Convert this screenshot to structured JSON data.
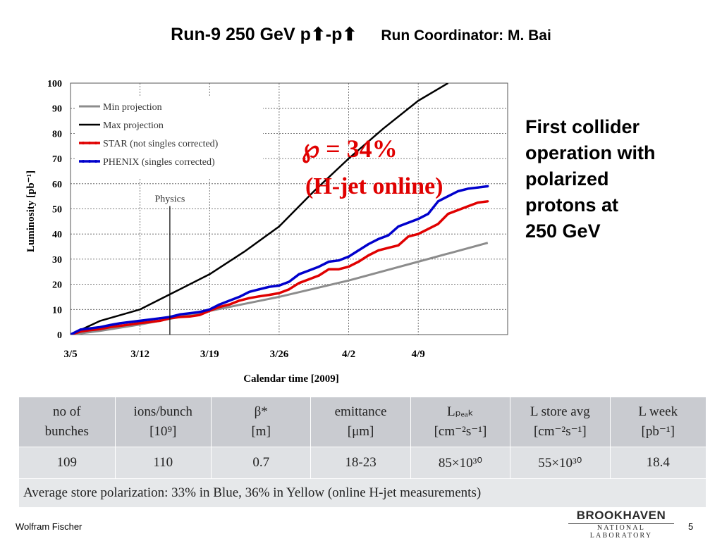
{
  "slide": {
    "title": "Run-9 250 GeV p⬆-p⬆",
    "coordinator": "Run Coordinator: M. Bai",
    "side_lines": [
      "First collider",
      "operation with",
      "polarized",
      "protons at",
      "250 GeV"
    ],
    "footer_author": "Wolfram Fischer",
    "page_number": "5",
    "logo_main": "BROOKHAVEN",
    "logo_sub": "NATIONAL LABORATORY"
  },
  "chart_data": {
    "type": "line",
    "xlabel": "Calendar time [2009]",
    "ylabel": "Luminosity [pb⁻¹]",
    "xlim": [
      0,
      44
    ],
    "ylim": [
      0,
      100
    ],
    "x_ticks": [
      {
        "x": 0,
        "label": "3/5"
      },
      {
        "x": 7,
        "label": "3/12"
      },
      {
        "x": 14,
        "label": "3/19"
      },
      {
        "x": 21,
        "label": "3/26"
      },
      {
        "x": 28,
        "label": "4/2"
      },
      {
        "x": 35,
        "label": "4/9"
      }
    ],
    "y_ticks": [
      0,
      10,
      20,
      30,
      40,
      50,
      60,
      70,
      80,
      90,
      100
    ],
    "colors": {
      "min": "#8c8c8c",
      "max": "#000000",
      "star": "#e00000",
      "phenix": "#0000cc"
    },
    "series": [
      {
        "name": "Min projection",
        "key": "min",
        "x": [
          0,
          3,
          7,
          11,
          16,
          21,
          28,
          35,
          42
        ],
        "y": [
          0,
          1.5,
          4,
          7,
          11,
          15,
          21.5,
          29,
          36.5
        ]
      },
      {
        "name": "Max projection",
        "key": "max",
        "x": [
          0,
          3,
          7,
          10.5,
          14,
          17.5,
          21,
          24.5,
          28,
          31.5,
          35,
          38
        ],
        "y": [
          0,
          5.5,
          10,
          17,
          24,
          33,
          43,
          57,
          70,
          82,
          93,
          100
        ]
      },
      {
        "name": "STAR (not singles corrected)",
        "key": "star",
        "x": [
          0,
          1,
          2,
          3,
          4,
          5,
          6,
          7,
          8,
          9,
          10,
          11,
          12,
          13,
          14,
          15,
          16,
          17,
          18,
          19,
          20,
          21,
          22,
          23,
          24,
          25,
          26,
          27,
          28,
          29,
          30,
          31,
          32,
          33,
          34,
          35,
          36,
          37,
          38,
          39,
          40,
          41,
          42
        ],
        "y": [
          0,
          1.2,
          1.8,
          2.2,
          3.0,
          3.5,
          4.0,
          4.6,
          5.0,
          5.5,
          6.5,
          7.0,
          7.2,
          7.8,
          9.5,
          11,
          12,
          13.5,
          14.5,
          15.2,
          15.8,
          16.5,
          18,
          20.5,
          22,
          23.5,
          26,
          26,
          27,
          29,
          31.5,
          33.5,
          34.5,
          35.5,
          39,
          40,
          42,
          44,
          48,
          49.5,
          51,
          52.5,
          53
        ]
      },
      {
        "name": "PHENIX (singles corrected)",
        "key": "phenix",
        "x": [
          0,
          1,
          2,
          3,
          4,
          5,
          6,
          7,
          8,
          9,
          10,
          11,
          12,
          13,
          14,
          15,
          16,
          17,
          18,
          19,
          20,
          21,
          22,
          23,
          24,
          25,
          26,
          27,
          28,
          29,
          30,
          31,
          32,
          33,
          34,
          35,
          36,
          37,
          38,
          39,
          40,
          41,
          42
        ],
        "y": [
          0,
          2.0,
          2.5,
          3.0,
          3.8,
          4.5,
          5.0,
          5.5,
          6.0,
          6.5,
          7.0,
          8.0,
          8.5,
          9.0,
          10,
          12,
          13.5,
          15,
          17,
          18,
          19,
          19.5,
          21,
          24,
          25.5,
          27,
          29,
          29.5,
          31,
          33.5,
          36,
          38,
          39.5,
          43,
          44.5,
          46,
          48,
          53,
          55,
          57,
          58,
          58.5,
          59
        ]
      }
    ],
    "annotation_physics": {
      "label": "Physics",
      "x": 10,
      "y_top": 50
    },
    "polarization_label": "P = 34%",
    "polarization_symbol": "℘",
    "polarization_value": " = 34%",
    "hjet_label": "(H-jet online)"
  },
  "table": {
    "headers": [
      [
        "no of",
        "bunches"
      ],
      [
        "ions/bunch",
        "[10⁹]"
      ],
      [
        "β*",
        "[m]"
      ],
      [
        "emittance",
        "[μm]"
      ],
      [
        "Lₚₑₐₖ",
        "[cm⁻²s⁻¹]"
      ],
      [
        "L store avg",
        "[cm⁻²s⁻¹]"
      ],
      [
        "L week",
        "[pb⁻¹]"
      ]
    ],
    "values": [
      "109",
      "110",
      "0.7",
      "18-23",
      "85×10³⁰",
      "55×10³⁰",
      "18.4"
    ],
    "note": "Average store polarization: 33% in Blue, 36% in Yellow (online H-jet measurements)"
  }
}
